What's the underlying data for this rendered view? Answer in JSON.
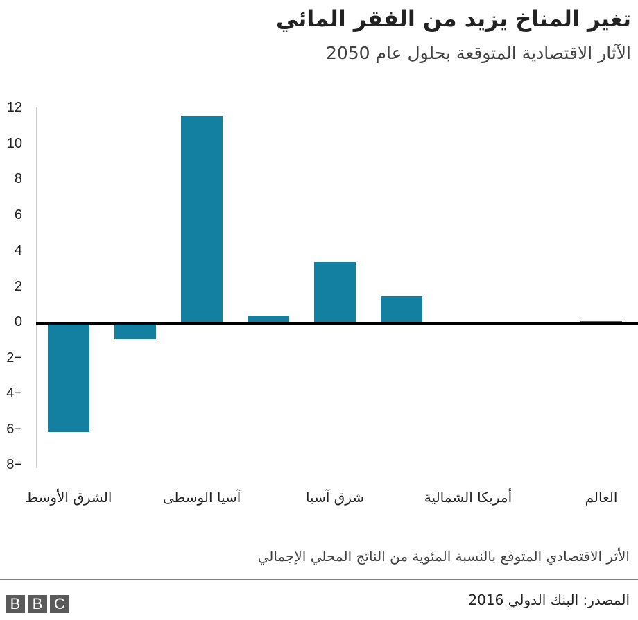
{
  "header": {
    "title": "تغير المناخ يزيد من الفقر المائي",
    "subtitle": "الآثار الاقتصادية المتوقعة بحلول عام 2050"
  },
  "footer": {
    "note": "الأثر الاقتصادي المتوقع بالنسبة المئوية من الناتج المحلي الإجمالي",
    "source": "المصدر: البنك الدولي 2016",
    "logo": [
      "B",
      "B",
      "C"
    ]
  },
  "colors": {
    "bar": "#1380a1",
    "zero_line": "#000000",
    "axis": "#cccccc"
  },
  "chart_data": {
    "type": "bar",
    "title": "تغير المناخ يزيد من الفقر المائي",
    "subtitle": "الآثار الاقتصادية المتوقعة بحلول عام 2050",
    "xlabel": "",
    "ylabel": "الأثر الاقتصادي المتوقع بالنسبة المئوية من الناتج المحلي الإجمالي",
    "categories": [
      "الشرق الأوسط",
      "",
      "آسيا الوسطى",
      "",
      "شرق آسيا",
      "",
      "أمريكا الشمالية",
      "",
      "العالم"
    ],
    "values": [
      -6.1,
      -0.9,
      11.6,
      0.4,
      3.4,
      1.5,
      0.0,
      0.0,
      0.1
    ],
    "ylim": [
      -8,
      12
    ],
    "yticks": [
      12,
      10,
      8,
      6,
      4,
      2,
      0,
      -2,
      -4,
      -6,
      -8
    ],
    "ytick_labels": [
      "12",
      "10",
      "8",
      "6",
      "4",
      "2",
      "0",
      "2−",
      "4−",
      "6−",
      "8−"
    ],
    "grid": false,
    "legend": null
  }
}
